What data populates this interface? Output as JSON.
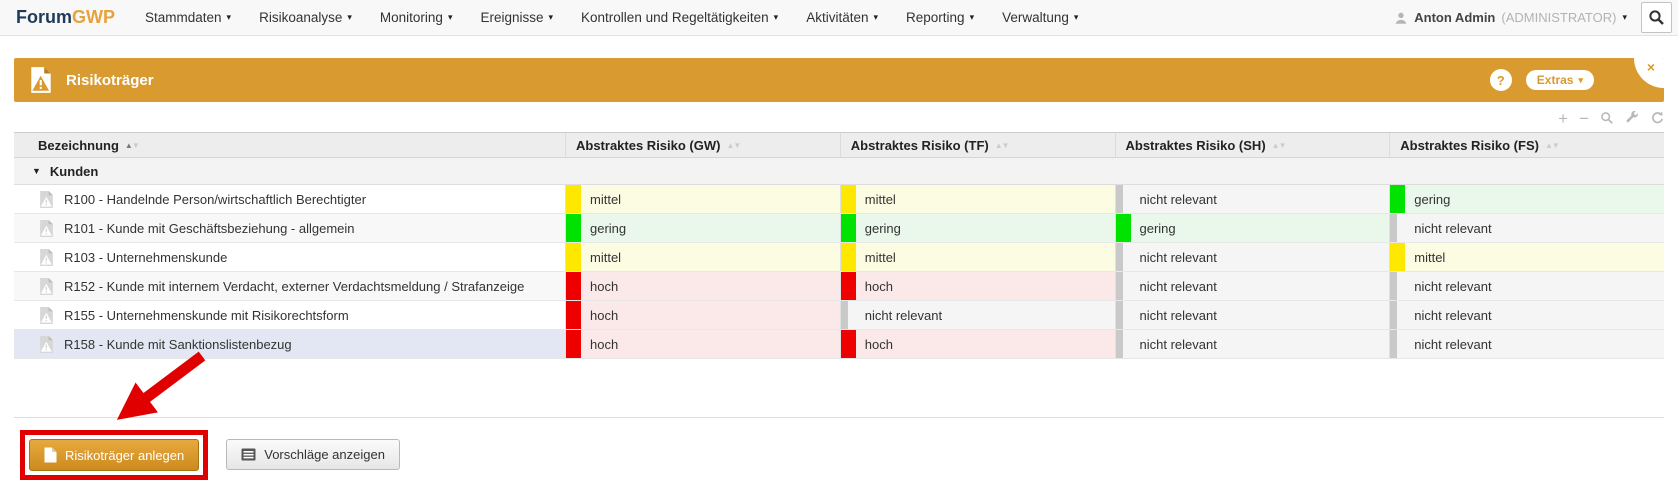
{
  "brand": {
    "primary": "Forum",
    "accent": "GWP"
  },
  "nav": {
    "items": [
      {
        "label": "Stammdaten"
      },
      {
        "label": "Risikoanalyse"
      },
      {
        "label": "Monitoring"
      },
      {
        "label": "Ereignisse"
      },
      {
        "label": "Kontrollen und Regeltätigkeiten"
      },
      {
        "label": "Aktivitäten"
      },
      {
        "label": "Reporting"
      },
      {
        "label": "Verwaltung"
      }
    ],
    "user": {
      "name": "Anton Admin",
      "role": "(ADMINISTRATOR)"
    }
  },
  "panel": {
    "title": "Risikoträger",
    "help_label": "?",
    "extras_label": "Extras",
    "close_label": "×"
  },
  "table": {
    "columns": [
      {
        "label": "Bezeichnung",
        "sorted": "asc"
      },
      {
        "label": "Abstraktes Risiko (GW)"
      },
      {
        "label": "Abstraktes Risiko (TF)"
      },
      {
        "label": "Abstraktes Risiko (SH)"
      },
      {
        "label": "Abstraktes Risiko (FS)"
      }
    ],
    "group_label": "Kunden",
    "risk_colors": {
      "mittel": {
        "bar": "#ffe800",
        "bg": "#fcfce3"
      },
      "gering": {
        "bar": "#00e300",
        "bg": "#eaf8ec"
      },
      "hoch": {
        "bar": "#ee0000",
        "bg": "#fbe9e9"
      },
      "nicht relevant": {
        "bar": "#c9c9c9",
        "bg": "#f5f5f5"
      }
    },
    "rows": [
      {
        "name": "R100 - Handelnde Person/wirtschaftlich Berechtigter",
        "gw": "mittel",
        "tf": "mittel",
        "sh": "nicht relevant",
        "fs": "gering",
        "selected": false
      },
      {
        "name": "R101 - Kunde mit Geschäftsbeziehung - allgemein",
        "gw": "gering",
        "tf": "gering",
        "sh": "gering",
        "fs": "nicht relevant",
        "selected": false
      },
      {
        "name": "R103 - Unternehmenskunde",
        "gw": "mittel",
        "tf": "mittel",
        "sh": "nicht relevant",
        "fs": "mittel",
        "selected": false
      },
      {
        "name": "R152 - Kunde mit internem Verdacht, externer Verdachtsmeldung / Strafanzeige",
        "gw": "hoch",
        "tf": "hoch",
        "sh": "nicht relevant",
        "fs": "nicht relevant",
        "selected": false
      },
      {
        "name": "R155 - Unternehmenskunde mit Risikorechtsform",
        "gw": "hoch",
        "tf": "nicht relevant",
        "sh": "nicht relevant",
        "fs": "nicht relevant",
        "selected": false
      },
      {
        "name": "R158 - Kunde mit Sanktionslistenbezug",
        "gw": "hoch",
        "tf": "hoch",
        "sh": "nicht relevant",
        "fs": "nicht relevant",
        "selected": true
      }
    ]
  },
  "footer": {
    "create_button": "Risikoträger anlegen",
    "suggestions_button": "Vorschläge anzeigen"
  },
  "colors": {
    "panel_orange": "#d99b2f",
    "brand_navy": "#1e3c5a",
    "brand_orange": "#e7a23c",
    "annotation_red": "#e00000"
  }
}
